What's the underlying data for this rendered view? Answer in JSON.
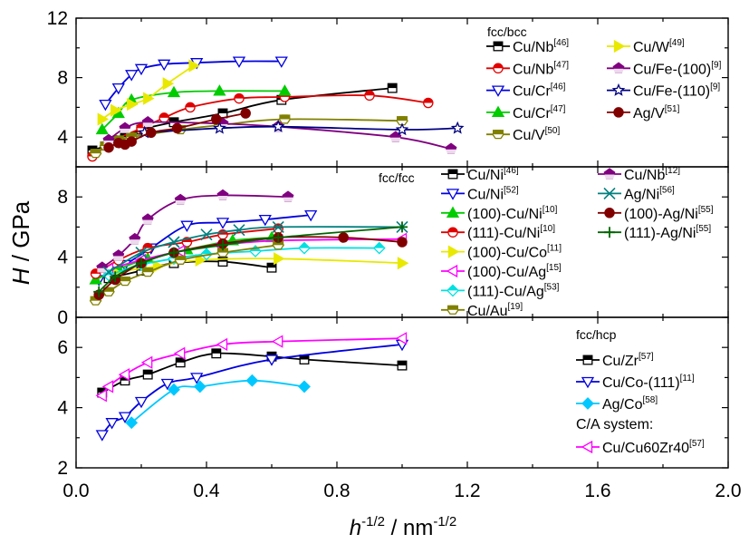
{
  "figure": {
    "ylabel": "H / GPa",
    "xlabel": "h^-1/2 / nm^-1/2",
    "xticks": [
      "0.0",
      "0.4",
      "0.8",
      "1.2",
      "1.6",
      "2.0"
    ],
    "panel_titles": [
      "fcc/bcc",
      "fcc/fcc",
      "fcc/hcp"
    ],
    "extra_legend_title": "C/A system:"
  },
  "chart_data": [
    {
      "type": "line",
      "title": "fcc/bcc",
      "xlim": [
        0,
        2.0
      ],
      "ylim": [
        2,
        12
      ],
      "yticks": [
        4,
        8,
        12
      ],
      "legend_placement": "top-right",
      "series": [
        {
          "name": "Cu/Nb",
          "ref": "[46]",
          "color": "#000000",
          "marker": "square-half",
          "x": [
            0.05,
            0.1,
            0.15,
            0.2,
            0.3,
            0.45,
            0.63,
            0.97
          ],
          "y": [
            3.1,
            3.5,
            4.0,
            4.5,
            5.0,
            5.6,
            6.5,
            7.3
          ]
        },
        {
          "name": "Cu/Nb",
          "ref": "[47]",
          "color": "#e00000",
          "marker": "circle-half",
          "x": [
            0.05,
            0.12,
            0.2,
            0.27,
            0.35,
            0.5,
            0.64,
            0.9,
            1.08
          ],
          "y": [
            2.7,
            3.8,
            4.6,
            5.3,
            6.0,
            6.6,
            6.7,
            6.8,
            6.3
          ]
        },
        {
          "name": "Cu/Cr",
          "ref": "[46]",
          "color": "#0000e0",
          "marker": "tri-down",
          "x": [
            0.09,
            0.13,
            0.17,
            0.2,
            0.27,
            0.37,
            0.5,
            0.63
          ],
          "y": [
            6.2,
            7.3,
            8.2,
            8.6,
            8.9,
            9.0,
            9.1,
            9.1
          ]
        },
        {
          "name": "Cu/Cr",
          "ref": "[47]",
          "color": "#00cc00",
          "marker": "tri-up",
          "x": [
            0.08,
            0.13,
            0.17,
            0.3,
            0.44,
            0.64
          ],
          "y": [
            4.5,
            5.6,
            6.5,
            7.0,
            7.1,
            7.1
          ]
        },
        {
          "name": "Cu/V",
          "ref": "[50]",
          "color": "#808000",
          "marker": "hexagon-half",
          "x": [
            0.06,
            0.09,
            0.13,
            0.17,
            0.32,
            0.44,
            0.64,
            1.0
          ],
          "y": [
            2.9,
            3.4,
            3.8,
            4.0,
            4.5,
            4.8,
            5.2,
            5.1
          ]
        },
        {
          "name": "Cu/W",
          "ref": "[49]",
          "color": "#e8e800",
          "marker": "tri-right",
          "x": [
            0.08,
            0.12,
            0.17,
            0.22,
            0.28,
            0.36
          ],
          "y": [
            5.2,
            5.8,
            6.2,
            6.6,
            7.6,
            8.8
          ]
        },
        {
          "name": "Cu/Fe-(100)",
          "ref": "[9]",
          "color": "#800080",
          "marker": "pentagon-half",
          "x": [
            0.1,
            0.15,
            0.22,
            0.45,
            0.62,
            0.98,
            1.15
          ],
          "y": [
            3.8,
            4.6,
            5.0,
            4.9,
            4.7,
            4.0,
            3.2
          ]
        },
        {
          "name": "Cu/Fe-(110)",
          "ref": "[9]",
          "color": "#000080",
          "marker": "star",
          "x": [
            0.21,
            0.44,
            0.62,
            1.0,
            1.17
          ],
          "y": [
            4.3,
            4.6,
            4.7,
            4.5,
            4.6
          ]
        },
        {
          "name": "Ag/V",
          "ref": "[51]",
          "color": "#800000",
          "marker": "circle-full",
          "x": [
            0.1,
            0.13,
            0.15,
            0.17,
            0.23,
            0.31,
            0.43,
            0.52
          ],
          "y": [
            3.3,
            3.6,
            3.5,
            3.7,
            4.3,
            4.6,
            5.2,
            5.6
          ]
        }
      ]
    },
    {
      "type": "line",
      "title": "fcc/fcc",
      "xlim": [
        0,
        2.0
      ],
      "ylim": [
        0,
        10
      ],
      "yticks": [
        0,
        4,
        8
      ],
      "legend_placement": "top-right",
      "series": [
        {
          "name": "Cu/Ni",
          "ref": "[46]",
          "color": "#000000",
          "marker": "square-half",
          "x": [
            0.1,
            0.2,
            0.3,
            0.45,
            0.6
          ],
          "y": [
            2.6,
            3.1,
            3.6,
            3.7,
            3.3
          ]
        },
        {
          "name": "Cu/Ni",
          "ref": "[52]",
          "color": "#0000e0",
          "marker": "tri-down",
          "x": [
            0.07,
            0.15,
            0.23,
            0.34,
            0.45,
            0.58,
            0.72
          ],
          "y": [
            2.5,
            3.5,
            4.6,
            6.1,
            6.3,
            6.5,
            6.8
          ]
        },
        {
          "name": "(100)-Cu/Ni",
          "ref": "[10]",
          "color": "#00cc00",
          "marker": "tri-up",
          "x": [
            0.06,
            0.13,
            0.22,
            0.34,
            0.48,
            0.6
          ],
          "y": [
            2.5,
            3.2,
            3.9,
            4.5,
            5.1,
            5.3
          ]
        },
        {
          "name": "(111)-Cu/Ni",
          "ref": "[10]",
          "color": "#e00000",
          "marker": "circle-half",
          "x": [
            0.06,
            0.13,
            0.22,
            0.34,
            0.45,
            0.62
          ],
          "y": [
            2.9,
            3.8,
            4.6,
            5.0,
            5.5,
            5.9
          ]
        },
        {
          "name": "(100)-Cu/Co",
          "ref": "[11]",
          "color": "#e8e800",
          "marker": "tri-right",
          "x": [
            0.12,
            0.25,
            0.38,
            0.62,
            1.0
          ],
          "y": [
            3.0,
            3.4,
            3.8,
            3.9,
            3.6
          ]
        },
        {
          "name": "(100)-Cu/Ag",
          "ref": "[15]",
          "color": "#ff00ff",
          "marker": "tri-left",
          "x": [
            0.1,
            0.2,
            0.32,
            0.44,
            0.62,
            1.0
          ],
          "y": [
            3.2,
            3.8,
            4.4,
            4.8,
            5.1,
            5.2
          ]
        },
        {
          "name": "(111)-Cu/Ag",
          "ref": "[53]",
          "color": "#00e0e0",
          "marker": "diamond",
          "x": [
            0.1,
            0.2,
            0.3,
            0.4,
            0.55,
            0.7,
            0.93
          ],
          "y": [
            2.8,
            3.5,
            3.9,
            4.2,
            4.4,
            4.6,
            4.6
          ]
        },
        {
          "name": "Cu/Au",
          "ref": "[19]",
          "color": "#808000",
          "marker": "hexagon-half",
          "x": [
            0.06,
            0.1,
            0.15,
            0.22,
            0.32,
            0.45,
            0.62
          ],
          "y": [
            1.1,
            1.7,
            2.4,
            3.0,
            3.8,
            4.3,
            4.8
          ]
        },
        {
          "name": "Cu/Nb",
          "ref": "[12]",
          "color": "#800080",
          "marker": "pentagon-half",
          "x": [
            0.08,
            0.13,
            0.18,
            0.22,
            0.32,
            0.45,
            0.65
          ],
          "y": [
            3.3,
            4.1,
            5.2,
            6.5,
            7.8,
            8.1,
            8.0
          ]
        },
        {
          "name": "Ag/Ni",
          "ref": "[56]",
          "color": "#008080",
          "marker": "cross-x",
          "x": [
            0.1,
            0.2,
            0.3,
            0.4,
            0.5,
            0.62,
            1.0
          ],
          "y": [
            3.0,
            4.3,
            5.0,
            5.5,
            5.8,
            6.0,
            6.0
          ]
        },
        {
          "name": "(100)-Ag/Ni",
          "ref": "[55]",
          "color": "#800000",
          "marker": "circle-full",
          "x": [
            0.07,
            0.12,
            0.2,
            0.3,
            0.45,
            0.62,
            0.82,
            1.0
          ],
          "y": [
            1.5,
            2.5,
            3.6,
            4.3,
            4.9,
            5.3,
            5.3,
            5.0
          ]
        },
        {
          "name": "(111)-Ag/Ni",
          "ref": "[55]",
          "color": "#006400",
          "marker": "plus",
          "x": [
            0.07,
            0.12,
            0.2,
            0.3,
            0.45,
            0.62,
            1.0
          ],
          "y": [
            1.7,
            2.7,
            3.6,
            4.3,
            4.8,
            5.3,
            6.0
          ]
        }
      ]
    },
    {
      "type": "line",
      "title": "fcc/hcp",
      "xlim": [
        0,
        2.0
      ],
      "ylim": [
        2,
        7
      ],
      "yticks": [
        2,
        4,
        6
      ],
      "legend_placement": "right",
      "series": [
        {
          "name": "Cu/Zr",
          "ref": "[57]",
          "color": "#000000",
          "marker": "square-half",
          "x": [
            0.08,
            0.15,
            0.22,
            0.32,
            0.43,
            0.6,
            0.7,
            1.0
          ],
          "y": [
            4.5,
            4.9,
            5.1,
            5.5,
            5.8,
            5.7,
            5.6,
            5.4
          ]
        },
        {
          "name": "Cu/Co-(111)",
          "ref": "[11]",
          "color": "#0000e0",
          "marker": "tri-down",
          "x": [
            0.08,
            0.11,
            0.15,
            0.2,
            0.28,
            0.37,
            0.6,
            1.0
          ],
          "y": [
            3.1,
            3.5,
            3.7,
            4.2,
            4.8,
            5.0,
            5.6,
            6.1
          ]
        },
        {
          "name": "Ag/Co",
          "ref": "[58]",
          "color": "#00c8ff",
          "marker": "diamond-full",
          "x": [
            0.17,
            0.3,
            0.38,
            0.54,
            0.7
          ],
          "y": [
            3.5,
            4.6,
            4.7,
            4.9,
            4.7
          ]
        },
        {
          "name": "Cu/Cu60Zr40",
          "ref": "[57]",
          "color": "#ff00ff",
          "marker": "tri-left",
          "x": [
            0.08,
            0.1,
            0.15,
            0.22,
            0.32,
            0.45,
            0.62,
            1.0
          ],
          "y": [
            4.4,
            4.7,
            5.1,
            5.5,
            5.8,
            6.1,
            6.2,
            6.3
          ]
        }
      ]
    }
  ]
}
